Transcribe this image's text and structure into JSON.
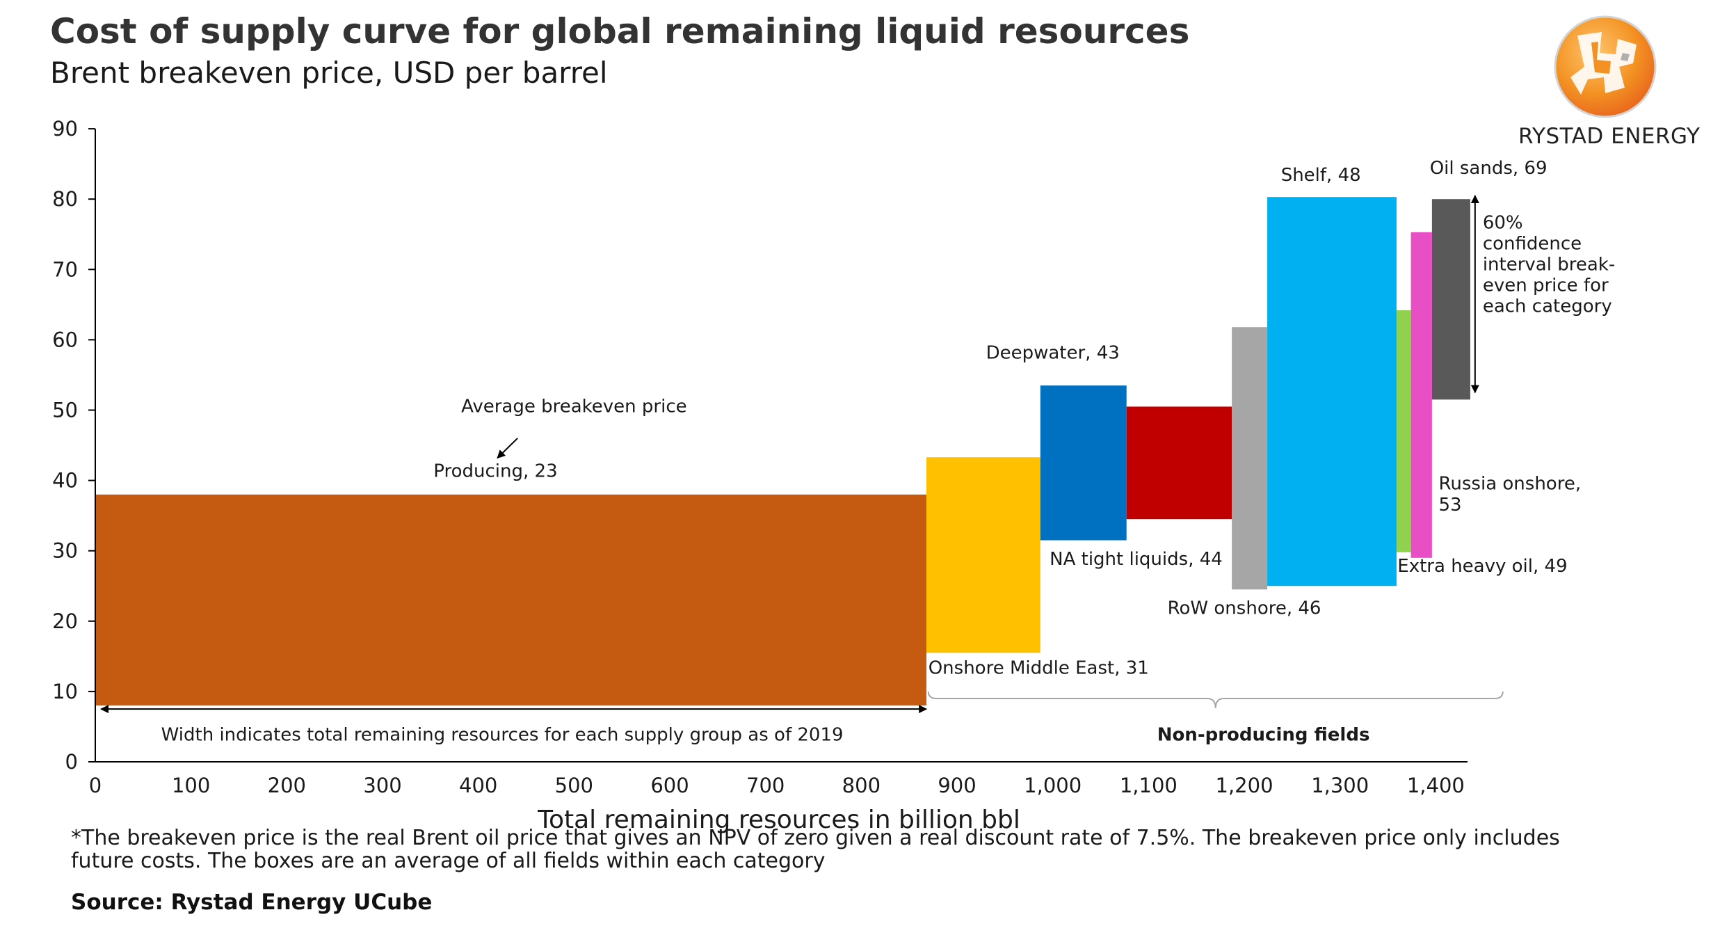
{
  "header": {
    "title": "Cost of supply curve for global remaining liquid resources",
    "subtitle": "Brent breakeven price, USD per barrel"
  },
  "brand": {
    "name": "RYSTAD ENERGY",
    "logo_colors": [
      "#f39223",
      "#e8641c",
      "#ffffff",
      "#b0b0b0"
    ]
  },
  "chart_data": {
    "type": "bar",
    "variant": "cost-of-supply-curve",
    "xlabel": "Total remaining resources in billion bbl",
    "ylabel": "",
    "xlim": [
      0,
      1440
    ],
    "ylim": [
      0,
      90
    ],
    "x_ticks": [
      {
        "value": 0,
        "label": "0"
      },
      {
        "value": 100,
        "label": "100"
      },
      {
        "value": 200,
        "label": "200"
      },
      {
        "value": 300,
        "label": "300"
      },
      {
        "value": 400,
        "label": "400"
      },
      {
        "value": 500,
        "label": "500"
      },
      {
        "value": 600,
        "label": "600"
      },
      {
        "value": 700,
        "label": "700"
      },
      {
        "value": 800,
        "label": "800"
      },
      {
        "value": 900,
        "label": "900"
      },
      {
        "value": 1000,
        "label": "1,000"
      },
      {
        "value": 1100,
        "label": "1,100"
      },
      {
        "value": 1200,
        "label": "1,200"
      },
      {
        "value": 1300,
        "label": "1,300"
      },
      {
        "value": 1400,
        "label": "1,400"
      }
    ],
    "y_ticks": [
      0,
      10,
      20,
      30,
      40,
      50,
      60,
      70,
      80,
      90
    ],
    "grid": false,
    "legend": "none",
    "series": [
      {
        "label": "Producing, 23",
        "x_start": 0,
        "x_end": 868,
        "y_low": 8,
        "y_high": 38,
        "color": "#c55a11",
        "label_x": 418,
        "label_y": 40.5,
        "label_anchor": "middle"
      },
      {
        "label": "Onshore Middle East, 31",
        "x_start": 868,
        "x_end": 987,
        "y_low": 15.5,
        "y_high": 43.3,
        "color": "#ffc000",
        "label_x": 870,
        "label_y": 12.5,
        "label_anchor": "start"
      },
      {
        "label": "Deepwater, 43",
        "x_start": 987,
        "x_end": 1077,
        "y_low": 31.5,
        "y_high": 53.5,
        "color": "#0070c0",
        "label_x": 1000,
        "label_y": 57.3,
        "label_anchor": "middle"
      },
      {
        "label": "NA tight liquids, 44",
        "x_start": 1077,
        "x_end": 1187,
        "y_low": 34.5,
        "y_high": 50.5,
        "color": "#c00000",
        "label_x": 1087,
        "label_y": 28.0,
        "label_anchor": "middle"
      },
      {
        "label": "RoW onshore, 46",
        "x_start": 1187,
        "x_end": 1224,
        "y_low": 24.5,
        "y_high": 61.8,
        "color": "#a6a6a6",
        "label_x": 1200,
        "label_y": 21.0,
        "label_anchor": "middle"
      },
      {
        "label": "Shelf, 48",
        "x_start": 1224,
        "x_end": 1359,
        "y_low": 25,
        "y_high": 80.3,
        "color": "#00b0f0",
        "label_x": 1280,
        "label_y": 82.6,
        "label_anchor": "middle"
      },
      {
        "label": "Extra heavy oil, 49",
        "x_start": 1359,
        "x_end": 1374,
        "y_low": 29.8,
        "y_high": 64.2,
        "color": "#92d050",
        "label_x": 1360,
        "label_y": 27.0,
        "label_anchor": "start"
      },
      {
        "label": "Russia onshore, 53",
        "x_start": 1374,
        "x_end": 1396,
        "y_low": 29,
        "y_high": 75.3,
        "color": "#e84fc4",
        "label_x": 1403,
        "label_y": 38.7,
        "label_anchor": "start",
        "label_line2_y": 35.7
      },
      {
        "label": "Oil sands, 69",
        "x_start": 1396,
        "x_end": 1436,
        "y_low": 51.5,
        "y_high": 80,
        "color": "#595959",
        "label_x": 1455,
        "label_y": 83.6,
        "label_anchor": "middle"
      }
    ],
    "annotations": {
      "average_breakeven": {
        "text": "Average breakeven price",
        "x": 500,
        "y": 49.7,
        "arrow_from": [
          441,
          46.0
        ],
        "arrow_to": [
          420,
          43.2
        ]
      },
      "width_note": {
        "text": "Width indicates total remaining resources for each supply group as of 2019",
        "x": 425,
        "y": 3.0,
        "arrow_y": 7.5,
        "arrow_from": 6,
        "arrow_to": 868
      },
      "non_producing": {
        "text": "Non-producing fields",
        "x": 1220,
        "y": 3.0,
        "brace_from": 870,
        "brace_to": 1470,
        "brace_y": 9.0
      },
      "confidence": {
        "text": [
          "60%",
          "confidence",
          "interval break-",
          "even price for",
          "each category"
        ],
        "x": 1449,
        "y_top": 75.8,
        "arrow_x": 1441,
        "arrow_from": 80.5,
        "arrow_to": 52.5
      }
    }
  },
  "footnote": "*The breakeven price is the real Brent oil price that gives an NPV of zero given a real discount rate of 7.5%. The breakeven price only includes future costs. The boxes are an average of all fields within each category",
  "source": "Source: Rystad Energy UCube"
}
